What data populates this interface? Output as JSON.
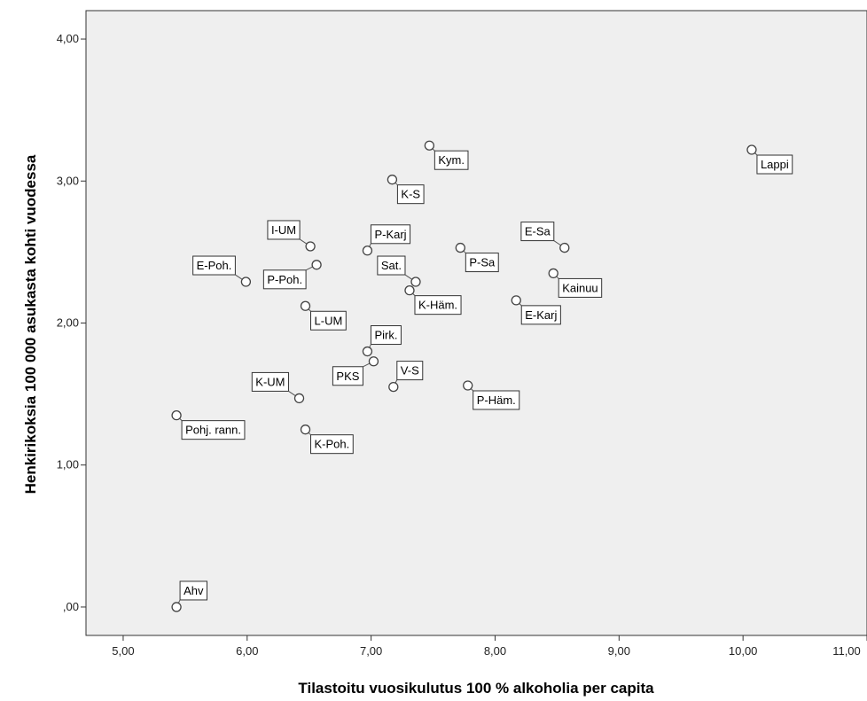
{
  "chart_data": {
    "type": "scatter",
    "xlabel": "Tilastoitu vuosikulutus 100 % alkoholia per capita",
    "ylabel": "Henkirikoksia 100 000 asukasta kohti vuodessa",
    "xlim": [
      4.7,
      11.0
    ],
    "ylim": [
      -0.2,
      4.2
    ],
    "x_ticks": [
      {
        "value": 5,
        "label": "5,00"
      },
      {
        "value": 6,
        "label": "6,00"
      },
      {
        "value": 7,
        "label": "7,00"
      },
      {
        "value": 8,
        "label": "8,00"
      },
      {
        "value": 9,
        "label": "9,00"
      },
      {
        "value": 10,
        "label": "10,00"
      },
      {
        "value": 11,
        "label": "11,00"
      }
    ],
    "y_ticks": [
      {
        "value": 0,
        "label": ",00"
      },
      {
        "value": 1,
        "label": "1,00"
      },
      {
        "value": 2,
        "label": "2,00"
      },
      {
        "value": 3,
        "label": "3,00"
      },
      {
        "value": 4,
        "label": "4,00"
      }
    ],
    "grid": false,
    "colors": {
      "plot_background": "#efefef",
      "point_fill": "#ffffff",
      "point_stroke": "#444444",
      "label_fill": "#ffffff",
      "label_stroke": "#333333"
    },
    "points": [
      {
        "label": "Lappi",
        "x": 10.07,
        "y": 3.22,
        "pos": "below-right"
      },
      {
        "label": "Kym.",
        "x": 7.47,
        "y": 3.25,
        "pos": "below-right"
      },
      {
        "label": "K-S",
        "x": 7.17,
        "y": 3.01,
        "pos": "below-right"
      },
      {
        "label": "I-UM",
        "x": 6.51,
        "y": 2.54,
        "pos": "above-left"
      },
      {
        "label": "P-Karj",
        "x": 6.97,
        "y": 2.51,
        "pos": "above-right"
      },
      {
        "label": "E-Poh.",
        "x": 5.99,
        "y": 2.29,
        "pos": "above-left"
      },
      {
        "label": "P-Poh.",
        "x": 6.56,
        "y": 2.41,
        "pos": "below-left"
      },
      {
        "label": "Sat.",
        "x": 7.36,
        "y": 2.29,
        "pos": "above-left"
      },
      {
        "label": "K-Häm.",
        "x": 7.31,
        "y": 2.23,
        "pos": "below-right"
      },
      {
        "label": "P-Sa",
        "x": 7.72,
        "y": 2.53,
        "pos": "below-right"
      },
      {
        "label": "E-Sa",
        "x": 8.56,
        "y": 2.53,
        "pos": "above-left"
      },
      {
        "label": "Kainuu",
        "x": 8.47,
        "y": 2.35,
        "pos": "below-right"
      },
      {
        "label": "E-Karj",
        "x": 8.17,
        "y": 2.16,
        "pos": "below-right"
      },
      {
        "label": "L-UM",
        "x": 6.47,
        "y": 2.12,
        "pos": "below-right"
      },
      {
        "label": "Pirk.",
        "x": 6.97,
        "y": 1.8,
        "pos": "above-right"
      },
      {
        "label": "PKS",
        "x": 7.02,
        "y": 1.73,
        "pos": "below-left"
      },
      {
        "label": "V-S",
        "x": 7.18,
        "y": 1.55,
        "pos": "above-right"
      },
      {
        "label": "P-Häm.",
        "x": 7.78,
        "y": 1.56,
        "pos": "below-right"
      },
      {
        "label": "K-UM",
        "x": 6.42,
        "y": 1.47,
        "pos": "above-left"
      },
      {
        "label": "Pohj. rann.",
        "x": 5.43,
        "y": 1.35,
        "pos": "below-right"
      },
      {
        "label": "K-Poh.",
        "x": 6.47,
        "y": 1.25,
        "pos": "below-right"
      },
      {
        "label": "Ahv",
        "x": 5.43,
        "y": 0.0,
        "pos": "above-right"
      }
    ]
  }
}
